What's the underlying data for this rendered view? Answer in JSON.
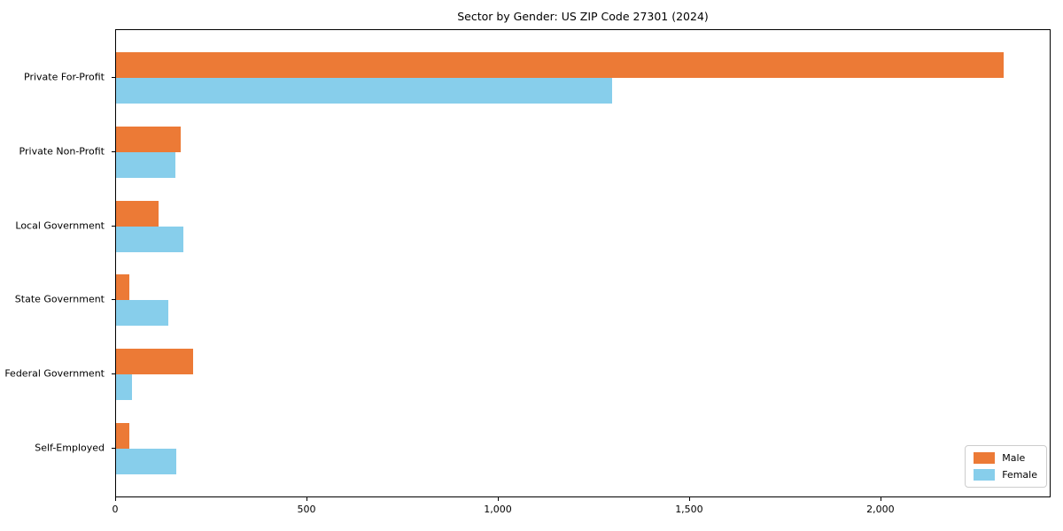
{
  "chart_data": {
    "type": "bar",
    "orientation": "horizontal",
    "title": "Sector by Gender: US ZIP Code 27301 (2024)",
    "categories": [
      "Private For-Profit",
      "Private Non-Profit",
      "Local Government",
      "State Government",
      "Federal Government",
      "Self-Employed"
    ],
    "series": [
      {
        "name": "Male",
        "color": "#EC7A36",
        "values": [
          2320,
          168,
          112,
          34,
          202,
          35
        ]
      },
      {
        "name": "Female",
        "color": "#87CEEB",
        "values": [
          1296,
          154,
          177,
          136,
          41,
          158
        ]
      }
    ],
    "xlim": [
      0,
      2440
    ],
    "xticks": [
      0,
      500,
      1000,
      1500,
      2000
    ],
    "xtick_labels": [
      "0",
      "500",
      "1,000",
      "1,500",
      "2,000"
    ],
    "xlabel": "",
    "ylabel": "",
    "grid": false,
    "legend_position": "lower right"
  },
  "colors": {
    "axis": "#000000",
    "legend_border": "#cccccc",
    "background": "#ffffff"
  }
}
